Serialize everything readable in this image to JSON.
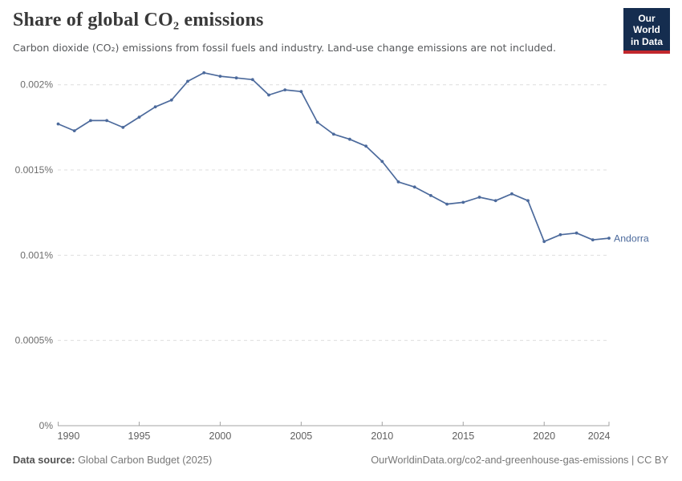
{
  "header": {
    "title": "Share of global CO₂ emissions",
    "subtitle": "Carbon dioxide (CO₂) emissions from fossil fuels and industry. Land-use change emissions are not included."
  },
  "logo": {
    "line1": "Our World",
    "line2": "in Data",
    "bg_color": "#152d4f",
    "accent_color": "#c1272d"
  },
  "chart_data": {
    "type": "line",
    "title": "Share of global CO₂ emissions",
    "unit": "%",
    "grid": "horizontal-dashed",
    "legend_position": "end-of-line-label",
    "xlim": [
      1990,
      2024
    ],
    "ylim": [
      0,
      0.002
    ],
    "xticks": [
      1990,
      1995,
      2000,
      2005,
      2010,
      2015,
      2020,
      2024
    ],
    "yticks": [
      {
        "value": 0,
        "label": "0%"
      },
      {
        "value": 0.0005,
        "label": "0.0005%"
      },
      {
        "value": 0.001,
        "label": "0.001%"
      },
      {
        "value": 0.0015,
        "label": "0.0015%"
      },
      {
        "value": 0.002,
        "label": "0.002%"
      }
    ],
    "series": [
      {
        "name": "Andorra",
        "color": "#4c6a9c",
        "x": [
          1990,
          1991,
          1992,
          1993,
          1994,
          1995,
          1996,
          1997,
          1998,
          1999,
          2000,
          2001,
          2002,
          2003,
          2004,
          2005,
          2006,
          2007,
          2008,
          2009,
          2010,
          2011,
          2012,
          2013,
          2014,
          2015,
          2016,
          2017,
          2018,
          2019,
          2020,
          2021,
          2022,
          2023,
          2024
        ],
        "values": [
          0.00177,
          0.00173,
          0.00179,
          0.00179,
          0.00175,
          0.00181,
          0.00187,
          0.00191,
          0.00202,
          0.00207,
          0.00205,
          0.00204,
          0.00203,
          0.00194,
          0.00197,
          0.00196,
          0.00178,
          0.00171,
          0.00168,
          0.00164,
          0.00155,
          0.00143,
          0.0014,
          0.00135,
          0.0013,
          0.00131,
          0.00134,
          0.00132,
          0.00136,
          0.00132,
          0.00108,
          0.00112,
          0.00113,
          0.00109,
          0.0011
        ]
      }
    ]
  },
  "footer": {
    "source_label": "Data source:",
    "source_value": "Global Carbon Budget (2025)",
    "license": "OurWorldinData.org/co2-and-greenhouse-gas-emissions | CC BY"
  }
}
